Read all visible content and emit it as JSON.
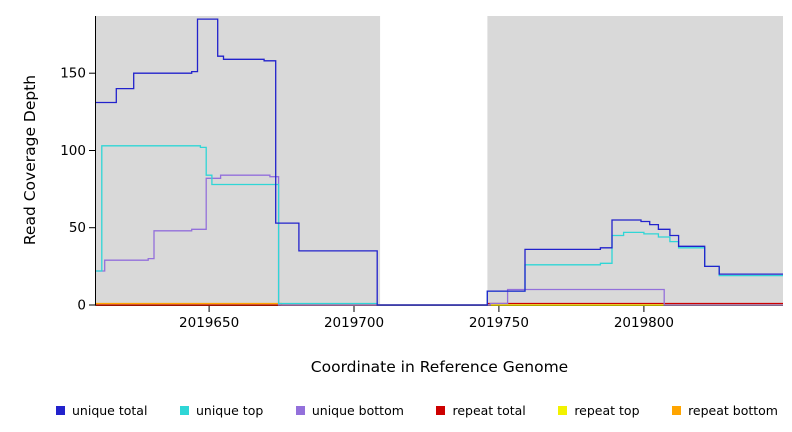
{
  "chart_data": {
    "type": "line",
    "step": true,
    "title": "",
    "xlabel": "Coordinate in Reference Genome",
    "ylabel": "Read Coverage Depth",
    "xlim": [
      2019611,
      2019848
    ],
    "ylim": [
      0,
      187
    ],
    "x_ticks": [
      2019650,
      2019700,
      2019750,
      2019800
    ],
    "y_ticks": [
      0,
      50,
      100,
      150
    ],
    "figure_bg": "#FFFFFF",
    "plot_bg": "#D9D9D9",
    "axis_color": "#000000",
    "grid": false,
    "legend_position": "bottom",
    "gap_region": {
      "x_start": 2019709,
      "x_end": 2019746,
      "color": "#FFFFFF"
    },
    "series": [
      {
        "name": "unique total",
        "color": "#2222CC",
        "steps": [
          [
            2019611,
            131
          ],
          [
            2019618,
            140
          ],
          [
            2019624,
            150
          ],
          [
            2019644,
            151
          ],
          [
            2019646,
            185
          ],
          [
            2019653,
            161
          ],
          [
            2019655,
            159
          ],
          [
            2019669,
            158
          ],
          [
            2019673,
            53
          ],
          [
            2019681,
            35
          ],
          [
            2019708,
            0
          ],
          [
            2019746,
            9
          ],
          [
            2019759,
            36
          ],
          [
            2019785,
            37
          ],
          [
            2019789,
            55
          ],
          [
            2019799,
            54
          ],
          [
            2019802,
            52
          ],
          [
            2019805,
            49
          ],
          [
            2019809,
            45
          ],
          [
            2019812,
            38
          ],
          [
            2019821,
            25
          ],
          [
            2019826,
            20
          ],
          [
            2019848,
            20
          ]
        ]
      },
      {
        "name": "unique top",
        "color": "#2FD6D6",
        "steps": [
          [
            2019611,
            22
          ],
          [
            2019613,
            103
          ],
          [
            2019647,
            102
          ],
          [
            2019649,
            84
          ],
          [
            2019651,
            78
          ],
          [
            2019672,
            78
          ],
          [
            2019674,
            1
          ],
          [
            2019708,
            0
          ],
          [
            2019746,
            9
          ],
          [
            2019759,
            26
          ],
          [
            2019785,
            27
          ],
          [
            2019789,
            45
          ],
          [
            2019793,
            47
          ],
          [
            2019800,
            46
          ],
          [
            2019805,
            44
          ],
          [
            2019809,
            41
          ],
          [
            2019812,
            37
          ],
          [
            2019821,
            25
          ],
          [
            2019826,
            19
          ],
          [
            2019848,
            19
          ]
        ]
      },
      {
        "name": "unique bottom",
        "color": "#9370DB",
        "steps": [
          [
            2019611,
            22
          ],
          [
            2019614,
            29
          ],
          [
            2019629,
            30
          ],
          [
            2019631,
            48
          ],
          [
            2019644,
            49
          ],
          [
            2019649,
            82
          ],
          [
            2019654,
            84
          ],
          [
            2019671,
            83
          ],
          [
            2019674,
            0
          ],
          [
            2019747,
            1
          ],
          [
            2019753,
            10
          ],
          [
            2019805,
            10
          ],
          [
            2019807,
            0
          ],
          [
            2019848,
            0
          ]
        ]
      },
      {
        "name": "repeat total",
        "color": "#CD0000",
        "steps": [
          [
            2019611,
            0
          ],
          [
            2019744,
            0
          ],
          [
            2019746,
            1
          ],
          [
            2019848,
            1
          ]
        ]
      },
      {
        "name": "repeat top",
        "color": "#F2F200",
        "steps": [
          [
            2019611,
            0
          ],
          [
            2019848,
            0
          ]
        ]
      },
      {
        "name": "repeat bottom",
        "color": "#FFA500",
        "steps": [
          [
            2019611,
            1
          ],
          [
            2019673,
            1
          ],
          [
            2019675,
            0
          ],
          [
            2019848,
            0
          ]
        ]
      }
    ]
  }
}
